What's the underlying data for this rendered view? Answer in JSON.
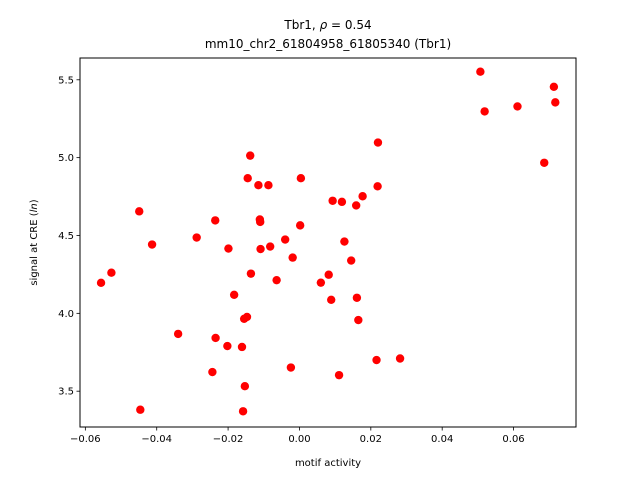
{
  "chart_data": {
    "type": "scatter",
    "title_line1_prefix": "Tbr1, ",
    "title_line1_symbol": "ρ",
    "title_line1_suffix": " = 0.54",
    "title_line2": "mm10_chr2_61804958_61805340 (Tbr1)",
    "xlabel": "motif activity",
    "ylabel_prefix": "signal at CRE (",
    "ylabel_italic": "ln",
    "ylabel_suffix": ")",
    "xlim": [
      -0.0615,
      0.0775
    ],
    "ylim": [
      3.27,
      5.64
    ],
    "xticks": [
      -0.06,
      -0.04,
      -0.02,
      0.0,
      0.02,
      0.04,
      0.06
    ],
    "xtick_labels": [
      "−0.06",
      "−0.04",
      "−0.02",
      "0.00",
      "0.02",
      "0.04",
      "0.06"
    ],
    "yticks": [
      3.5,
      4.0,
      4.5,
      5.0,
      5.5
    ],
    "ytick_labels": [
      "3.5",
      "4.0",
      "4.5",
      "5.0",
      "5.5"
    ],
    "grid": false,
    "marker_color": "#ff0000",
    "points": [
      {
        "x": -0.0556,
        "y": 4.196
      },
      {
        "x": -0.0527,
        "y": 4.261
      },
      {
        "x": -0.0449,
        "y": 4.655
      },
      {
        "x": -0.0446,
        "y": 3.381
      },
      {
        "x": -0.0413,
        "y": 4.442
      },
      {
        "x": -0.034,
        "y": 3.868
      },
      {
        "x": -0.0288,
        "y": 4.487
      },
      {
        "x": -0.0244,
        "y": 3.623
      },
      {
        "x": -0.0236,
        "y": 4.597
      },
      {
        "x": -0.0235,
        "y": 3.842
      },
      {
        "x": -0.0202,
        "y": 3.79
      },
      {
        "x": -0.0199,
        "y": 4.416
      },
      {
        "x": -0.0183,
        "y": 4.119
      },
      {
        "x": -0.0161,
        "y": 3.784
      },
      {
        "x": -0.0158,
        "y": 3.371
      },
      {
        "x": -0.0155,
        "y": 3.965
      },
      {
        "x": -0.0153,
        "y": 3.532
      },
      {
        "x": -0.0147,
        "y": 3.977
      },
      {
        "x": -0.0145,
        "y": 4.868
      },
      {
        "x": -0.0138,
        "y": 5.013
      },
      {
        "x": -0.0136,
        "y": 4.255
      },
      {
        "x": -0.0115,
        "y": 4.823
      },
      {
        "x": -0.0111,
        "y": 4.603
      },
      {
        "x": -0.011,
        "y": 4.587
      },
      {
        "x": -0.0109,
        "y": 4.413
      },
      {
        "x": -0.0087,
        "y": 4.823
      },
      {
        "x": -0.0082,
        "y": 4.429
      },
      {
        "x": -0.0064,
        "y": 4.213
      },
      {
        "x": -0.004,
        "y": 4.474
      },
      {
        "x": -0.0024,
        "y": 3.652
      },
      {
        "x": -0.0019,
        "y": 4.358
      },
      {
        "x": 0.0002,
        "y": 4.565
      },
      {
        "x": 0.0004,
        "y": 4.868
      },
      {
        "x": 0.006,
        "y": 4.197
      },
      {
        "x": 0.0082,
        "y": 4.248
      },
      {
        "x": 0.0089,
        "y": 4.087
      },
      {
        "x": 0.0093,
        "y": 4.723
      },
      {
        "x": 0.0111,
        "y": 3.603
      },
      {
        "x": 0.0119,
        "y": 4.716
      },
      {
        "x": 0.0126,
        "y": 4.461
      },
      {
        "x": 0.0145,
        "y": 4.339
      },
      {
        "x": 0.0159,
        "y": 4.693
      },
      {
        "x": 0.0161,
        "y": 4.1
      },
      {
        "x": 0.0165,
        "y": 3.957
      },
      {
        "x": 0.0177,
        "y": 4.752
      },
      {
        "x": 0.0216,
        "y": 3.7
      },
      {
        "x": 0.0219,
        "y": 4.816
      },
      {
        "x": 0.022,
        "y": 5.097
      },
      {
        "x": 0.0282,
        "y": 3.71
      },
      {
        "x": 0.0507,
        "y": 5.552
      },
      {
        "x": 0.0519,
        "y": 5.297
      },
      {
        "x": 0.0611,
        "y": 5.329
      },
      {
        "x": 0.0686,
        "y": 4.967
      },
      {
        "x": 0.0713,
        "y": 5.455
      },
      {
        "x": 0.0717,
        "y": 5.355
      }
    ]
  }
}
